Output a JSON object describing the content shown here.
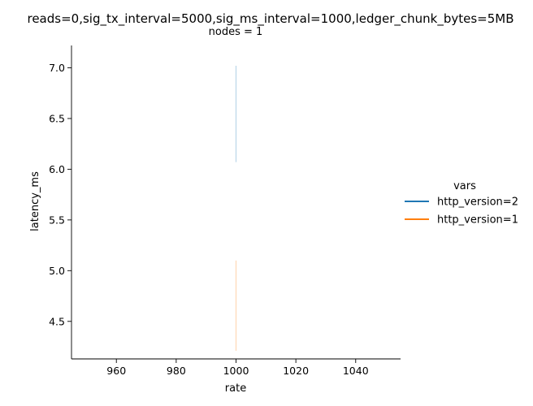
{
  "chart_data": {
    "type": "line",
    "suptitle": "reads=0,sig_tx_interval=5000,sig_ms_interval=1000,ledger_chunk_bytes=5MB",
    "panel_title": "nodes = 1",
    "xlabel": "rate",
    "ylabel": "latency_ms",
    "xlim": [
      945,
      1055
    ],
    "ylim": [
      4.13,
      7.22
    ],
    "x_ticks": [
      960,
      980,
      1000,
      1020,
      1040
    ],
    "x_tick_labels": [
      "960",
      "980",
      "1000",
      "1020",
      "1040"
    ],
    "y_ticks": [
      4.5,
      5.0,
      5.5,
      6.0,
      6.5,
      7.0
    ],
    "y_tick_labels": [
      "4.5",
      "5.0",
      "5.5",
      "6.0",
      "6.5",
      "7.0"
    ],
    "legend": {
      "title": "vars",
      "placement": "right"
    },
    "series": [
      {
        "name": "http_version=2",
        "color": "#1f77b4",
        "band": {
          "x": 1000,
          "ymin": 6.07,
          "ymax": 7.02
        }
      },
      {
        "name": "http_version=1",
        "color": "#ff7f0e",
        "band": {
          "x": 1000,
          "ymin": 4.21,
          "ymax": 5.1
        }
      }
    ]
  }
}
